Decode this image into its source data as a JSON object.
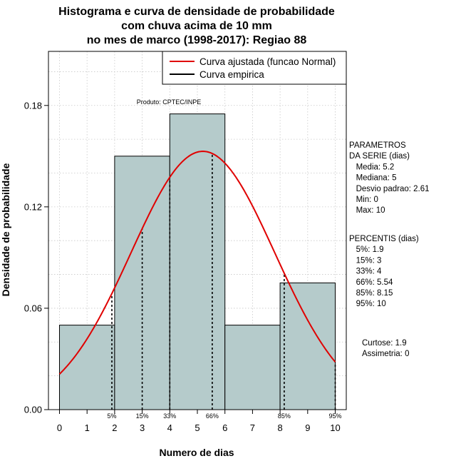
{
  "chart_data": {
    "type": "bar",
    "title": [
      "Histograma e curva de densidade de probabilidade",
      "com chuva acima de 10 mm",
      "no mes de marco (1998-2017): Regiao 88"
    ],
    "xlabel": "Numero de dias",
    "ylabel": "Densidade de probabilidade",
    "xlim": [
      -0.4,
      10.4
    ],
    "ylim": [
      0,
      0.212
    ],
    "xticks": [
      0,
      1,
      2,
      3,
      4,
      5,
      6,
      7,
      8,
      9,
      10
    ],
    "yticks": [
      0.0,
      0.06,
      0.12,
      0.18
    ],
    "ytick_labels": [
      "0.00",
      "0.06",
      "0.12",
      "0.18"
    ],
    "grid": true,
    "bins": [
      {
        "start": 0,
        "end": 2,
        "density": 0.05
      },
      {
        "start": 2,
        "end": 4,
        "density": 0.15
      },
      {
        "start": 4,
        "end": 6,
        "density": 0.175
      },
      {
        "start": 6,
        "end": 8,
        "density": 0.05
      },
      {
        "start": 8,
        "end": 10,
        "density": 0.075
      }
    ],
    "bar_color": "#b5cbcb",
    "fitted_curve": {
      "name": "Curva ajustada (funcao Normal)",
      "color": "#e00000",
      "mean": 5.2,
      "sd": 2.61
    },
    "empirical_curve": {
      "name": "Curva empirica",
      "color": "#000000"
    },
    "percentiles": [
      {
        "label": "5%",
        "x": 1.9
      },
      {
        "label": "15%",
        "x": 3
      },
      {
        "label": "33%",
        "x": 4
      },
      {
        "label": "66%",
        "x": 5.54
      },
      {
        "label": "85%",
        "x": 8.15
      },
      {
        "label": "95%",
        "x": 10
      }
    ],
    "product_label": "Produto: CPTEC/INPE",
    "legend_position": "top-right",
    "parameters_block": [
      "PARAMETROS",
      "DA SERIE (dias)",
      "   Media: 5.2",
      "   Mediana: 5",
      "   Desvio padrao: 2.61",
      "   Min: 0",
      "   Max: 10"
    ],
    "percentiles_block": [
      "PERCENTIS (dias)",
      "   5%: 1.9",
      "   15%: 3",
      "   33%: 4",
      "   66%: 5.54",
      "   85%: 8.15",
      "   95%: 10"
    ],
    "stats_block": [
      "Curtose: 1.9",
      "Assimetria: 0"
    ]
  }
}
